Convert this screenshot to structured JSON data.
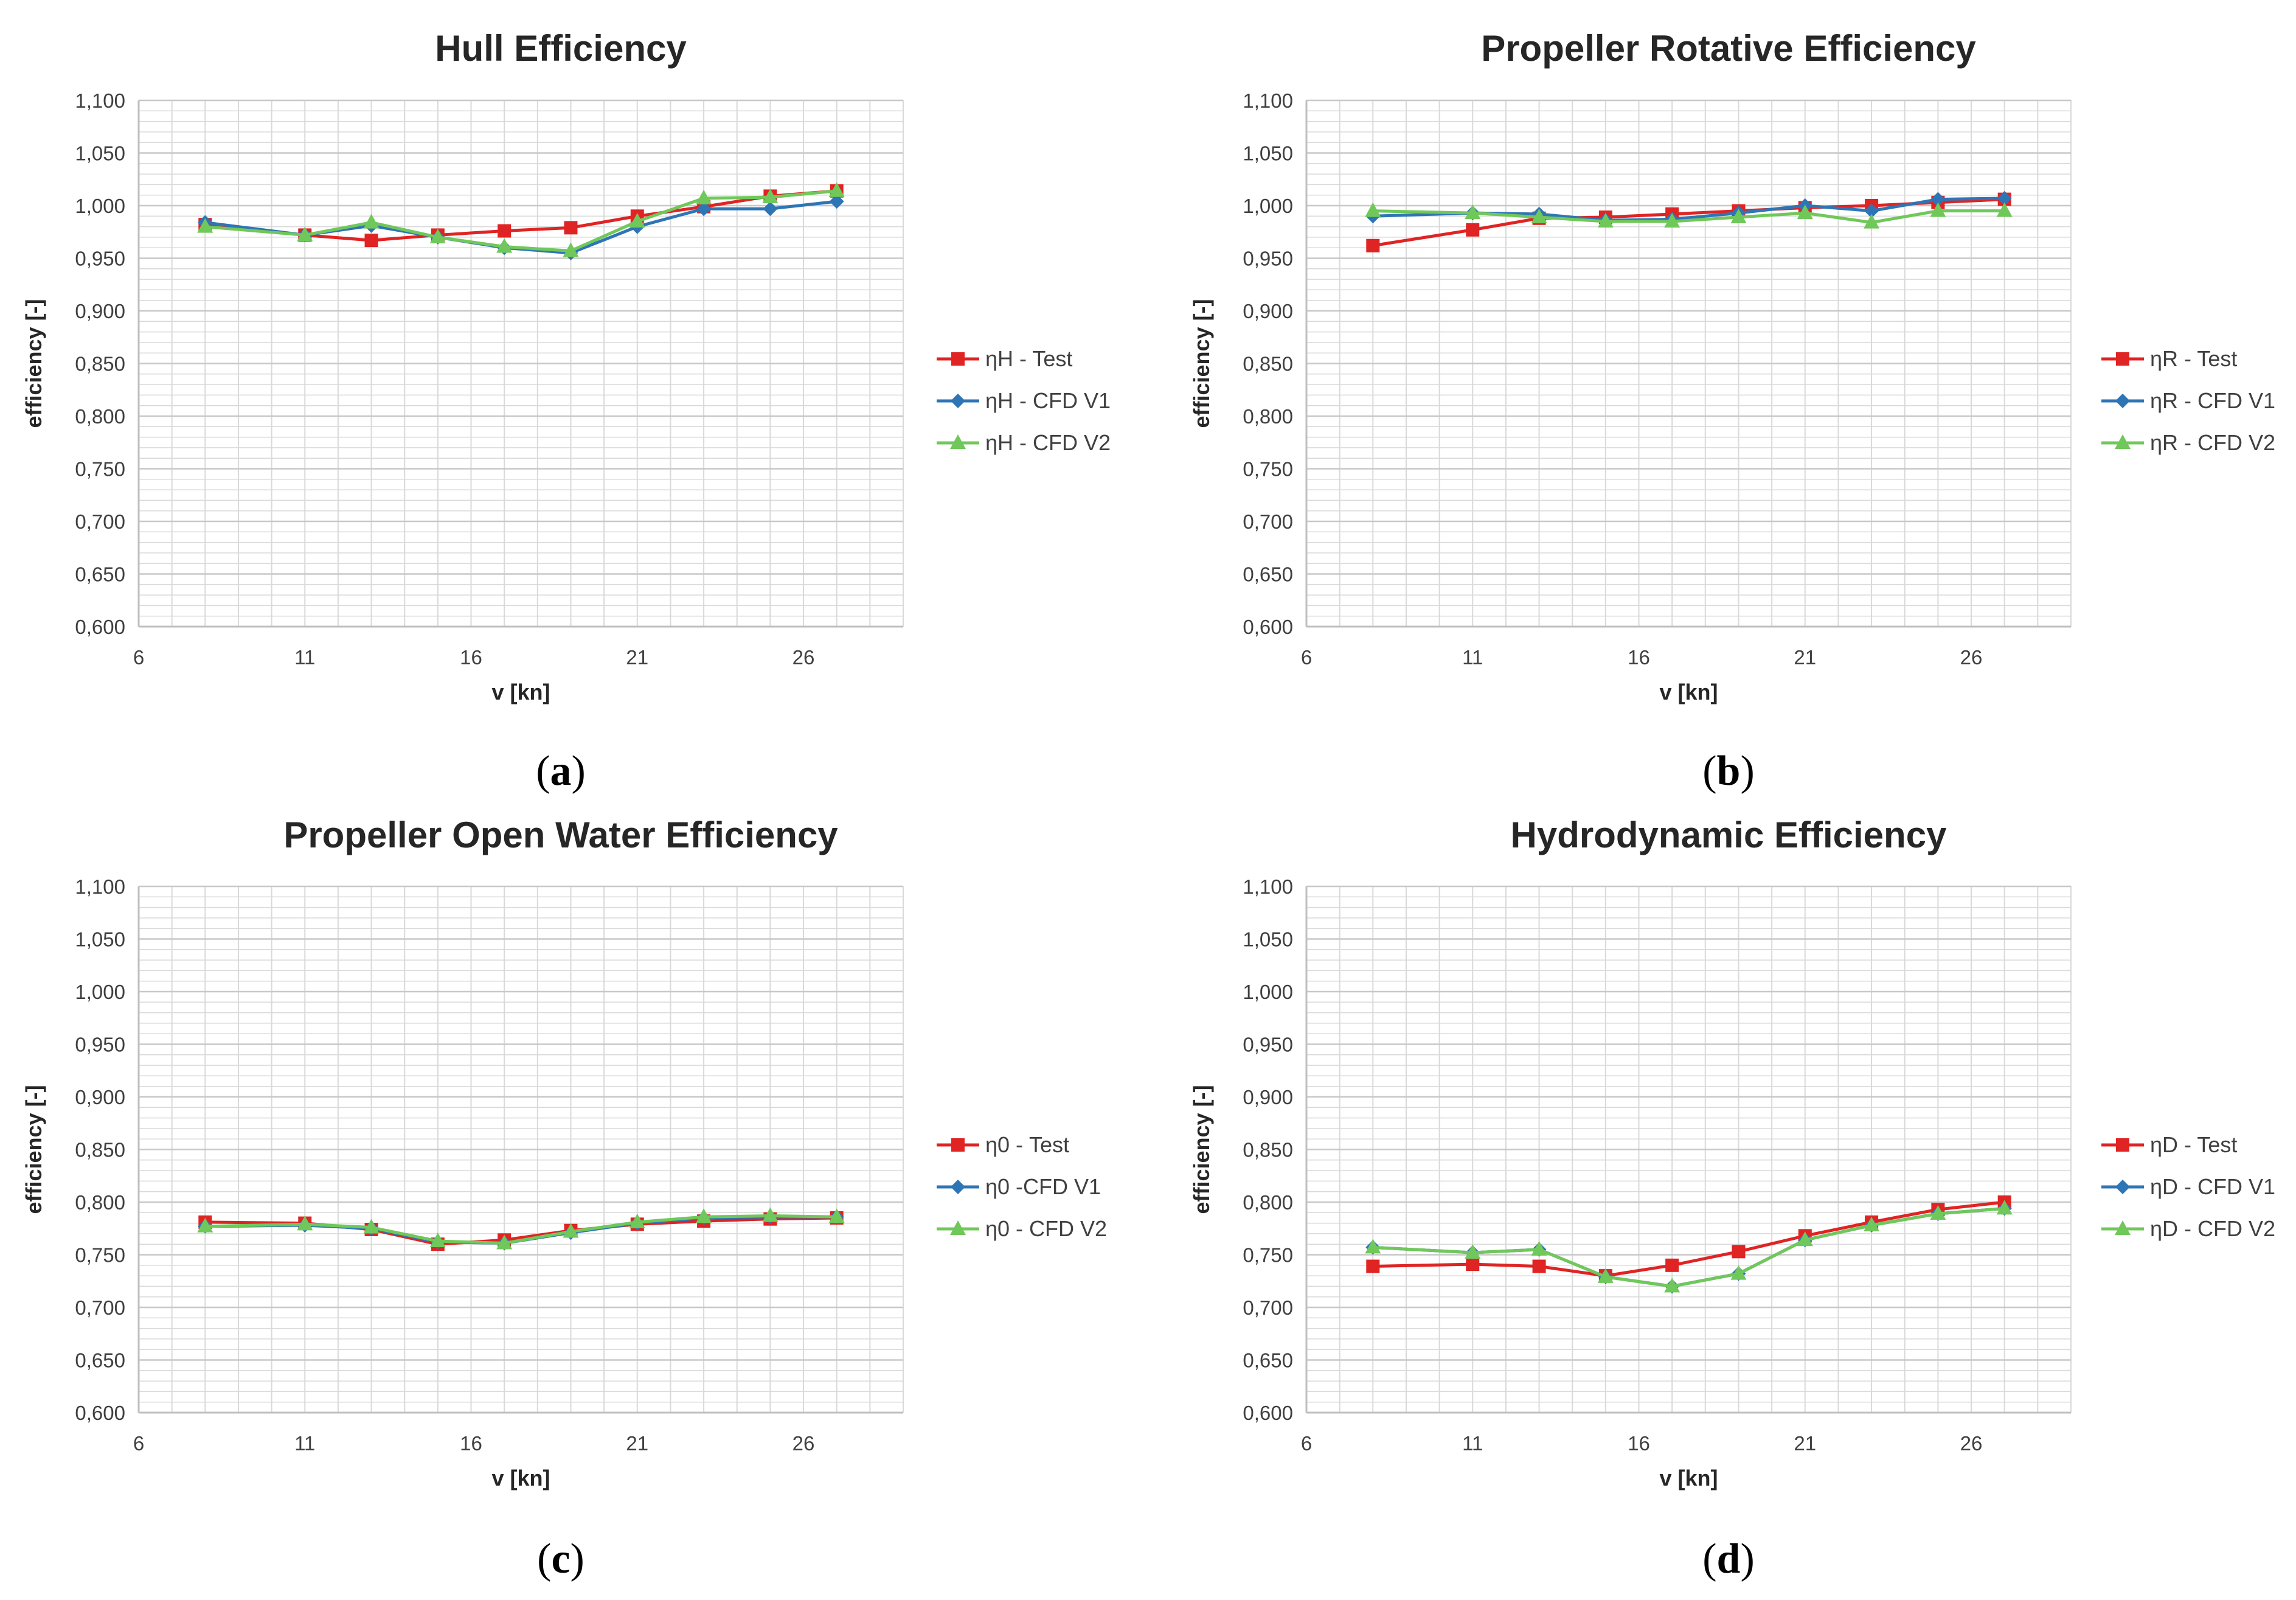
{
  "colors": {
    "test": "#E02323",
    "cfd_v1": "#2E75B6",
    "cfd_v2": "#70C85A",
    "grid": "#D9D9D9",
    "axis": "#BFBFBF",
    "text": "#404040"
  },
  "chart_data": [
    {
      "type": "line",
      "panel": "a",
      "caption": "a",
      "title": "Hull Efficiency",
      "xlabel": "v [kn]",
      "ylabel": "efficiency [-]",
      "xlim": [
        6,
        29
      ],
      "ylim": [
        0.6,
        1.1
      ],
      "x_ticks": [
        "6",
        "11",
        "16",
        "21",
        "26"
      ],
      "y_ticks": [
        "0,600",
        "0,650",
        "0,700",
        "0,750",
        "0,800",
        "0,850",
        "0,900",
        "0,950",
        "1,000",
        "1,050",
        "1,100"
      ],
      "grid": true,
      "legend": "right",
      "x": [
        8,
        11,
        13,
        15,
        17,
        19,
        21,
        23,
        25,
        27
      ],
      "series": [
        {
          "name": "ηH - Test",
          "marker": "square",
          "color_key": "test",
          "values": [
            0.982,
            0.972,
            0.967,
            0.972,
            0.976,
            0.979,
            0.99,
            0.999,
            1.009,
            1.014
          ]
        },
        {
          "name": "ηH - CFD V1",
          "marker": "diamond",
          "color_key": "cfd_v1",
          "values": [
            0.984,
            0.972,
            0.981,
            0.97,
            0.96,
            0.955,
            0.98,
            0.997,
            0.997,
            1.004
          ]
        },
        {
          "name": "ηH - CFD V2",
          "marker": "triangle",
          "color_key": "cfd_v2",
          "values": [
            0.98,
            0.972,
            0.984,
            0.97,
            0.961,
            0.957,
            0.985,
            1.007,
            1.008,
            1.014
          ]
        }
      ]
    },
    {
      "type": "line",
      "panel": "b",
      "caption": "b",
      "title": "Propeller Rotative Efficiency",
      "xlabel": "v [kn]",
      "ylabel": "efficiency [-]",
      "xlim": [
        6,
        29
      ],
      "ylim": [
        0.6,
        1.1
      ],
      "x_ticks": [
        "6",
        "11",
        "16",
        "21",
        "26"
      ],
      "y_ticks": [
        "0,600",
        "0,650",
        "0,700",
        "0,750",
        "0,800",
        "0,850",
        "0,900",
        "0,950",
        "1,000",
        "1,050",
        "1,100"
      ],
      "grid": true,
      "legend": "right",
      "x": [
        8,
        11,
        13,
        15,
        17,
        19,
        21,
        23,
        25,
        27
      ],
      "series": [
        {
          "name": "ηR - Test",
          "marker": "square",
          "color_key": "test",
          "values": [
            0.962,
            0.977,
            0.988,
            0.989,
            0.992,
            0.995,
            0.998,
            1.0,
            1.003,
            1.006
          ]
        },
        {
          "name": "ηR - CFD V1",
          "marker": "diamond",
          "color_key": "cfd_v1",
          "values": [
            0.99,
            0.993,
            0.992,
            0.986,
            0.987,
            0.993,
            1.0,
            0.995,
            1.006,
            1.007
          ]
        },
        {
          "name": "ηR -  CFD V2",
          "marker": "triangle",
          "color_key": "cfd_v2",
          "values": [
            0.995,
            0.993,
            0.989,
            0.985,
            0.985,
            0.989,
            0.993,
            0.984,
            0.995,
            0.995
          ]
        }
      ]
    },
    {
      "type": "line",
      "panel": "c",
      "caption": "c",
      "title": "Propeller Open Water Efficiency",
      "xlabel": "v [kn]",
      "ylabel": "efficiency [-]",
      "xlim": [
        6,
        29
      ],
      "ylim": [
        0.6,
        1.1
      ],
      "x_ticks": [
        "6",
        "11",
        "16",
        "21",
        "26"
      ],
      "y_ticks": [
        "0,600",
        "0,650",
        "0,700",
        "0,750",
        "0,800",
        "0,850",
        "0,900",
        "0,950",
        "1,000",
        "1,050",
        "1,100"
      ],
      "grid": true,
      "legend": "right",
      "x": [
        8,
        11,
        13,
        15,
        17,
        19,
        21,
        23,
        25,
        27
      ],
      "series": [
        {
          "name": "η0 - Test",
          "marker": "square",
          "color_key": "test",
          "values": [
            0.781,
            0.78,
            0.774,
            0.76,
            0.764,
            0.773,
            0.779,
            0.782,
            0.784,
            0.785
          ]
        },
        {
          "name": "η0 -CFD V1",
          "marker": "diamond",
          "color_key": "cfd_v1",
          "values": [
            0.777,
            0.778,
            0.775,
            0.762,
            0.761,
            0.771,
            0.78,
            0.785,
            0.786,
            0.786
          ]
        },
        {
          "name": "η0 - CFD V2",
          "marker": "triangle",
          "color_key": "cfd_v2",
          "values": [
            0.777,
            0.779,
            0.776,
            0.763,
            0.761,
            0.772,
            0.781,
            0.786,
            0.787,
            0.786
          ]
        }
      ]
    },
    {
      "type": "line",
      "panel": "d",
      "caption": "d",
      "title": "Hydrodynamic Efficiency",
      "xlabel": "v [kn]",
      "ylabel": "efficiency [-]",
      "xlim": [
        6,
        29
      ],
      "ylim": [
        0.6,
        1.1
      ],
      "x_ticks": [
        "6",
        "11",
        "16",
        "21",
        "26"
      ],
      "y_ticks": [
        "0,600",
        "0,650",
        "0,700",
        "0,750",
        "0,800",
        "0,850",
        "0,900",
        "0,950",
        "1,000",
        "1,050",
        "1,100"
      ],
      "grid": true,
      "legend": "right",
      "x": [
        8,
        11,
        13,
        15,
        17,
        19,
        21,
        23,
        25,
        27
      ],
      "series": [
        {
          "name": "ηD - Test",
          "marker": "square",
          "color_key": "test",
          "values": [
            0.739,
            0.741,
            0.739,
            0.73,
            0.74,
            0.753,
            0.768,
            0.781,
            0.793,
            0.8
          ]
        },
        {
          "name": "ηD - CFD V1",
          "marker": "diamond",
          "color_key": "cfd_v1",
          "values": [
            0.757,
            0.752,
            0.755,
            0.729,
            0.72,
            0.732,
            0.764,
            0.778,
            0.789,
            0.794
          ]
        },
        {
          "name": "ηD - CFD V2",
          "marker": "triangle",
          "color_key": "cfd_v2",
          "values": [
            0.757,
            0.752,
            0.755,
            0.729,
            0.72,
            0.732,
            0.764,
            0.778,
            0.789,
            0.794
          ]
        }
      ]
    }
  ]
}
